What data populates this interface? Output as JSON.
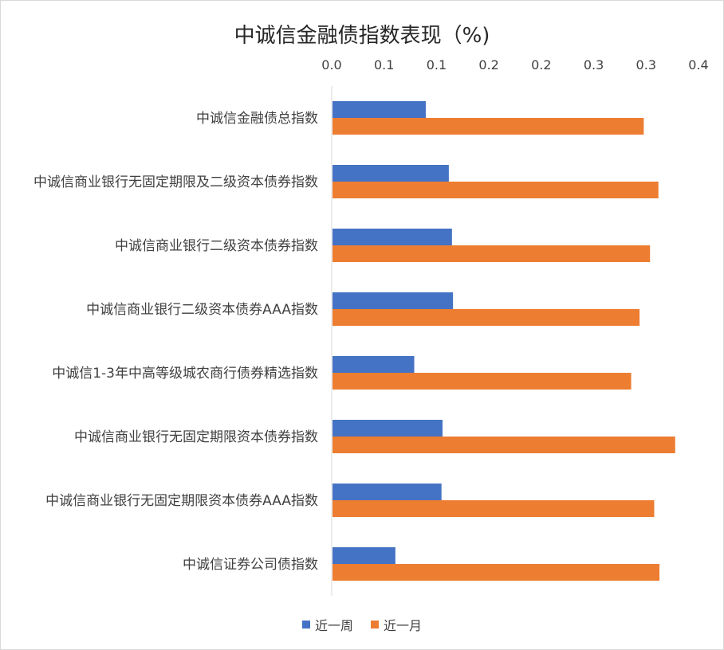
{
  "chart_data": {
    "type": "bar",
    "orientation": "horizontal",
    "title": "中诚信金融债指数表现（%)",
    "categories": [
      "中诚信金融债总指数",
      "中诚信商业银行无固定期限及二级资本债券指数",
      "中诚信商业银行二级资本债券指数",
      "中诚信商业银行二级资本债券AAA指数",
      "中诚信1-3年中高等级城农商行债券精选指数",
      "中诚信商业银行无固定期限资本债券指数",
      "中诚信商业银行无固定期限资本债券AAA指数",
      "中诚信证券公司债指数"
    ],
    "series": [
      {
        "name": "近一周",
        "color": "#4472c4",
        "values": [
          0.089,
          0.111,
          0.114,
          0.115,
          0.078,
          0.105,
          0.104,
          0.06
        ]
      },
      {
        "name": "近一月",
        "color": "#ed7d31",
        "values": [
          0.297,
          0.311,
          0.303,
          0.293,
          0.285,
          0.327,
          0.307,
          0.312
        ]
      }
    ],
    "xlim": [
      0,
      0.35
    ],
    "xticks": [
      "0.0",
      "0.1",
      "0.1",
      "0.2",
      "0.2",
      "0.3",
      "0.3",
      "0.4"
    ],
    "axis_position": "top",
    "legend_position": "bottom",
    "grid": false
  }
}
